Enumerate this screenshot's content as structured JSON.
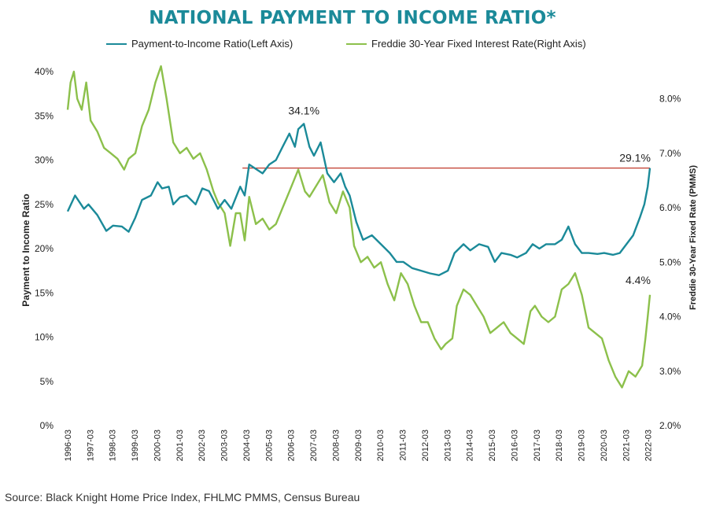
{
  "title": "NATIONAL PAYMENT TO INCOME RATIO*",
  "source": "Source: Black Knight Home Price Index, FHLMC PMMS, Census Bureau",
  "colors": {
    "payment_to_income": "#1b8a99",
    "interest_rate": "#8cc04b",
    "reference_line": "#c0392b",
    "title": "#1b8a99"
  },
  "legend": [
    {
      "label": "Payment-to-Income Ratio(Left Axis)",
      "color": "#1b8a99"
    },
    {
      "label": "Freddie 30-Year Fixed Interest Rate(Right Axis)",
      "color": "#8cc04b"
    }
  ],
  "chart_data": {
    "type": "line",
    "title": "NATIONAL PAYMENT TO INCOME RATIO*",
    "ylabel": "Payment to Income Ratio",
    "y2label": "Freddie 30-Year Fixed Rate (PMMS)",
    "ylim": [
      0,
      40
    ],
    "y2lim": [
      2.0,
      8.5
    ],
    "yticks": [
      "0%",
      "5%",
      "10%",
      "15%",
      "20%",
      "25%",
      "30%",
      "35%",
      "40%"
    ],
    "y2ticks": [
      "2.0%",
      "3.0%",
      "4.0%",
      "5.0%",
      "6.0%",
      "7.0%",
      "8.0%"
    ],
    "xticks": [
      "1996-03",
      "1997-03",
      "1998-03",
      "1999-03",
      "2000-03",
      "2001-03",
      "2002-03",
      "2003-03",
      "2004-03",
      "2005-03",
      "2006-03",
      "2007-03",
      "2008-03",
      "2009-03",
      "2010-03",
      "2011-03",
      "2012-03",
      "2013-03",
      "2014-03",
      "2015-03",
      "2016-03",
      "2017-03",
      "2018-03",
      "2019-03",
      "2020-03",
      "2021-03",
      "2022-03"
    ],
    "grid": false,
    "legend_position": "top",
    "series": [
      {
        "name": "Payment-to-Income Ratio(Left Axis)",
        "axis": "left",
        "x": [
          1996.17,
          1996.5,
          1996.9,
          1997.1,
          1997.5,
          1997.9,
          1998.2,
          1998.6,
          1998.9,
          1999.2,
          1999.5,
          1999.9,
          2000.2,
          2000.4,
          2000.7,
          2000.9,
          2001.2,
          2001.5,
          2001.9,
          2002.2,
          2002.5,
          2002.9,
          2003.2,
          2003.5,
          2003.9,
          2004.1,
          2004.3,
          2004.6,
          2004.9,
          2005.2,
          2005.5,
          2005.8,
          2006.1,
          2006.35,
          2006.5,
          2006.75,
          2007.0,
          2007.2,
          2007.5,
          2007.8,
          2008.1,
          2008.4,
          2008.6,
          2008.8,
          2009.1,
          2009.4,
          2009.8,
          2010.2,
          2010.6,
          2010.9,
          2011.2,
          2011.6,
          2012.0,
          2012.4,
          2012.8,
          2013.2,
          2013.5,
          2013.9,
          2014.2,
          2014.6,
          2015.0,
          2015.3,
          2015.6,
          2016.0,
          2016.3,
          2016.7,
          2017.0,
          2017.3,
          2017.6,
          2018.0,
          2018.3,
          2018.6,
          2018.9,
          2019.2,
          2019.5,
          2019.9,
          2020.2,
          2020.6,
          2020.9,
          2021.2,
          2021.5,
          2021.8,
          2022.0,
          2022.15,
          2022.25
        ],
        "values": [
          24.2,
          26.0,
          24.5,
          25.0,
          23.8,
          22.0,
          22.6,
          22.5,
          21.9,
          23.5,
          25.5,
          26.0,
          27.5,
          26.8,
          27.0,
          25.0,
          25.8,
          26.0,
          25.0,
          26.8,
          26.5,
          24.5,
          25.5,
          24.5,
          27.0,
          26.0,
          29.5,
          29.0,
          28.5,
          29.5,
          30.0,
          31.5,
          33.0,
          31.5,
          33.5,
          34.1,
          31.5,
          30.5,
          32.0,
          28.5,
          27.5,
          28.5,
          27.0,
          26.0,
          23.0,
          21.0,
          21.5,
          20.5,
          19.5,
          18.5,
          18.5,
          17.8,
          17.5,
          17.2,
          17.0,
          17.5,
          19.5,
          20.5,
          19.8,
          20.5,
          20.2,
          18.5,
          19.5,
          19.3,
          19.0,
          19.5,
          20.5,
          20.0,
          20.5,
          20.5,
          21.0,
          22.5,
          20.5,
          19.5,
          19.5,
          19.4,
          19.5,
          19.3,
          19.5,
          20.5,
          21.5,
          23.5,
          25.0,
          27.0,
          29.1
        ]
      },
      {
        "name": "Freddie 30-Year Fixed Interest Rate(Right Axis)",
        "axis": "right",
        "x": [
          1996.17,
          1996.3,
          1996.45,
          1996.6,
          1996.8,
          1997.0,
          1997.2,
          1997.5,
          1997.8,
          1998.1,
          1998.4,
          1998.7,
          1998.9,
          1999.2,
          1999.5,
          1999.8,
          2000.1,
          2000.35,
          2000.6,
          2000.9,
          2001.2,
          2001.5,
          2001.8,
          2002.1,
          2002.4,
          2002.7,
          2002.9,
          2003.2,
          2003.45,
          2003.7,
          2003.9,
          2004.1,
          2004.3,
          2004.6,
          2004.9,
          2005.2,
          2005.5,
          2005.8,
          2006.1,
          2006.5,
          2006.8,
          2007.0,
          2007.3,
          2007.6,
          2007.9,
          2008.2,
          2008.5,
          2008.8,
          2009.0,
          2009.3,
          2009.6,
          2009.9,
          2010.2,
          2010.5,
          2010.8,
          2011.1,
          2011.4,
          2011.7,
          2012.0,
          2012.3,
          2012.6,
          2012.9,
          2013.1,
          2013.4,
          2013.6,
          2013.9,
          2014.2,
          2014.5,
          2014.8,
          2015.1,
          2015.4,
          2015.7,
          2016.0,
          2016.3,
          2016.6,
          2016.9,
          2017.1,
          2017.4,
          2017.7,
          2018.0,
          2018.3,
          2018.6,
          2018.9,
          2019.2,
          2019.5,
          2019.8,
          2020.1,
          2020.4,
          2020.7,
          2021.0,
          2021.3,
          2021.6,
          2021.9,
          2022.05,
          2022.15,
          2022.25
        ],
        "values": [
          7.8,
          8.3,
          8.5,
          8.0,
          7.8,
          8.3,
          7.6,
          7.4,
          7.1,
          7.0,
          6.9,
          6.7,
          6.9,
          7.0,
          7.5,
          7.8,
          8.3,
          8.6,
          8.0,
          7.2,
          7.0,
          7.1,
          6.9,
          7.0,
          6.7,
          6.3,
          6.1,
          5.9,
          5.3,
          5.9,
          5.9,
          5.4,
          6.2,
          5.7,
          5.8,
          5.6,
          5.7,
          6.0,
          6.3,
          6.7,
          6.3,
          6.2,
          6.4,
          6.6,
          6.1,
          5.9,
          6.3,
          6.0,
          5.3,
          5.0,
          5.1,
          4.9,
          5.0,
          4.6,
          4.3,
          4.8,
          4.6,
          4.2,
          3.9,
          3.9,
          3.6,
          3.4,
          3.5,
          3.6,
          4.2,
          4.5,
          4.4,
          4.2,
          4.0,
          3.7,
          3.8,
          3.9,
          3.7,
          3.6,
          3.5,
          4.1,
          4.2,
          4.0,
          3.9,
          4.0,
          4.5,
          4.6,
          4.8,
          4.4,
          3.8,
          3.7,
          3.6,
          3.2,
          2.9,
          2.7,
          3.0,
          2.9,
          3.1,
          3.6,
          4.0,
          4.4
        ]
      }
    ],
    "reference_line": {
      "axis": "left",
      "value": 29.1,
      "from_x": 2004.0,
      "to_x": 2022.25
    },
    "annotations": [
      {
        "text": "34.1%",
        "x": 2006.75,
        "y": 34.1,
        "axis": "left"
      },
      {
        "text": "29.1%",
        "x": 2022.0,
        "y": 29.1,
        "axis": "left"
      },
      {
        "text": "4.4%",
        "x": 2022.0,
        "y": 4.4,
        "axis": "right"
      }
    ]
  }
}
